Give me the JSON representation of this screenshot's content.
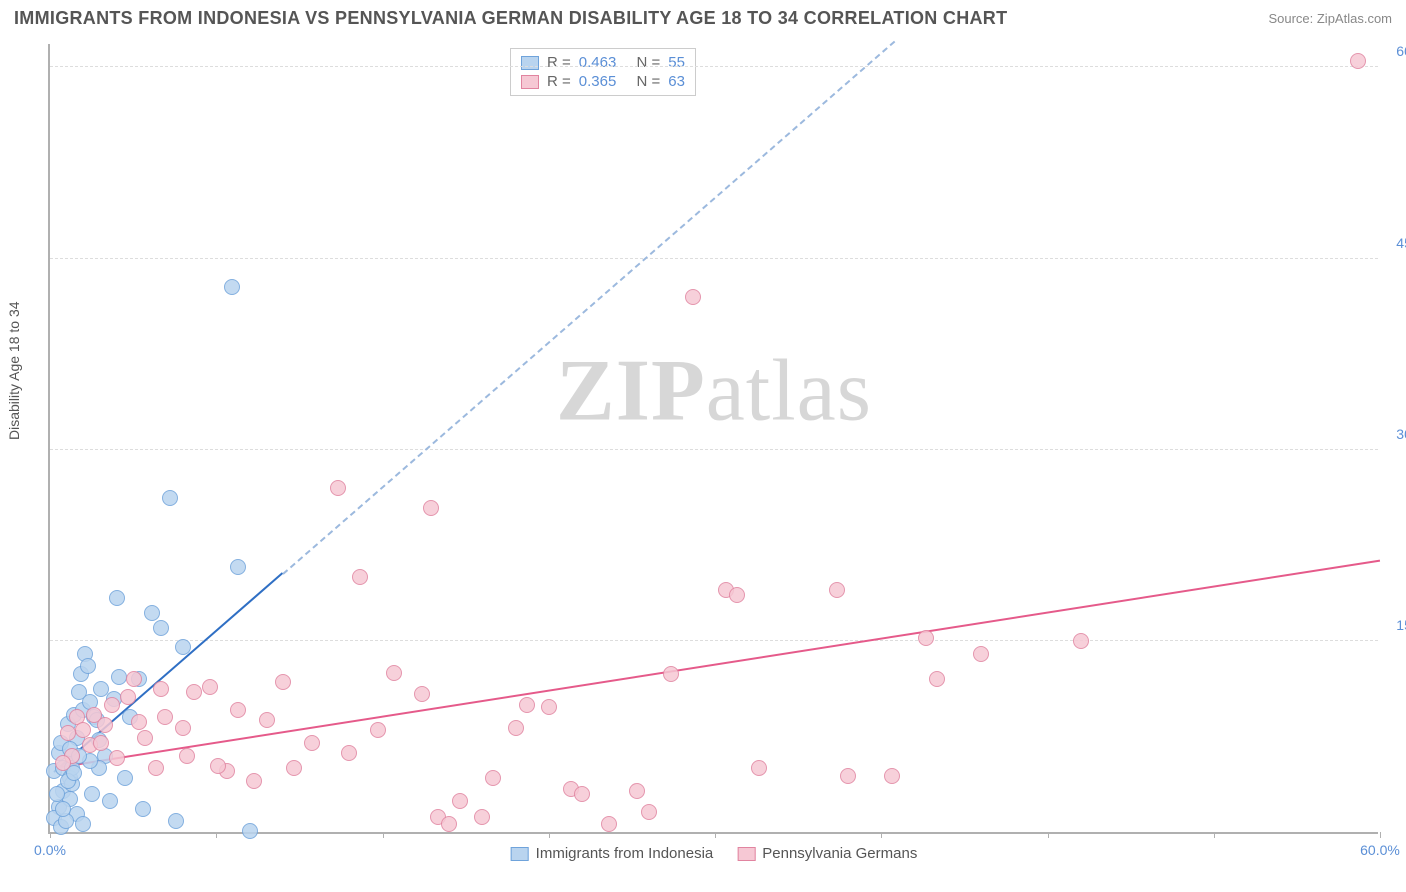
{
  "title": "IMMIGRANTS FROM INDONESIA VS PENNSYLVANIA GERMAN DISABILITY AGE 18 TO 34 CORRELATION CHART",
  "source": "Source: ZipAtlas.com",
  "y_axis_label": "Disability Age 18 to 34",
  "watermark_a": "ZIP",
  "watermark_b": "atlas",
  "chart": {
    "type": "scatter",
    "xlim": [
      0,
      60
    ],
    "ylim": [
      0,
      62
    ],
    "y_ticks": [
      15,
      30,
      45,
      60
    ],
    "y_tick_labels": [
      "15.0%",
      "30.0%",
      "45.0%",
      "60.0%"
    ],
    "x_ticks": [
      0,
      7.5,
      15,
      22.5,
      30,
      37.5,
      45,
      52.5,
      60
    ],
    "x_tick_labels_shown": {
      "0": "0.0%",
      "60": "60.0%"
    },
    "background_color": "#ffffff",
    "grid_color": "#dddddd",
    "axis_color": "#b0b0b0",
    "dot_radius": 8,
    "series": [
      {
        "name": "Immigrants from Indonesia",
        "fill": "#b9d4ef",
        "stroke": "#6fa3db",
        "r_value": "0.463",
        "n_value": "55",
        "trend": {
          "x1": 0.2,
          "y1": 4.6,
          "x2": 10.5,
          "y2": 20.2,
          "color": "#2f6fc4",
          "dash_extend_to_x": 39
        },
        "points": [
          [
            0.2,
            4.8
          ],
          [
            0.4,
            6.2
          ],
          [
            0.6,
            5.0
          ],
          [
            0.5,
            7.0
          ],
          [
            0.8,
            8.5
          ],
          [
            1.0,
            6.0
          ],
          [
            0.9,
            4.2
          ],
          [
            1.1,
            9.2
          ],
          [
            1.3,
            11.0
          ],
          [
            1.5,
            9.6
          ],
          [
            1.2,
            7.4
          ],
          [
            1.4,
            12.4
          ],
          [
            1.6,
            14.0
          ],
          [
            2.0,
            9.0
          ],
          [
            2.2,
            7.2
          ],
          [
            2.1,
            8.8
          ],
          [
            0.6,
            3.2
          ],
          [
            0.4,
            2.0
          ],
          [
            0.9,
            2.6
          ],
          [
            1.2,
            1.4
          ],
          [
            1.5,
            0.6
          ],
          [
            1.0,
            3.8
          ],
          [
            0.3,
            3.0
          ],
          [
            0.2,
            1.1
          ],
          [
            2.5,
            6.0
          ],
          [
            2.9,
            10.4
          ],
          [
            3.1,
            12.2
          ],
          [
            4.6,
            17.2
          ],
          [
            5.0,
            16.0
          ],
          [
            5.4,
            26.2
          ],
          [
            8.2,
            42.8
          ],
          [
            8.5,
            20.8
          ],
          [
            3.4,
            4.2
          ],
          [
            2.7,
            2.4
          ],
          [
            4.2,
            1.8
          ],
          [
            5.7,
            0.9
          ],
          [
            9.0,
            0.1
          ],
          [
            2.2,
            5.0
          ],
          [
            1.8,
            5.6
          ],
          [
            0.5,
            0.4
          ],
          [
            0.7,
            0.9
          ],
          [
            0.6,
            1.8
          ],
          [
            3.0,
            18.4
          ],
          [
            3.6,
            9.0
          ],
          [
            6.0,
            14.5
          ],
          [
            4.0,
            12.0
          ],
          [
            1.0,
            5.0
          ],
          [
            0.9,
            6.5
          ],
          [
            0.8,
            4.0
          ],
          [
            1.1,
            4.6
          ],
          [
            1.8,
            10.2
          ],
          [
            1.3,
            6.0
          ],
          [
            2.3,
            11.2
          ],
          [
            1.9,
            3.0
          ],
          [
            1.7,
            13.0
          ]
        ]
      },
      {
        "name": "Pennsylvania Germans",
        "fill": "#f6c8d4",
        "stroke": "#e184a0",
        "r_value": "0.365",
        "n_value": "63",
        "trend": {
          "x1": 0.5,
          "y1": 5.0,
          "x2": 60,
          "y2": 21.2,
          "color": "#e55a8a"
        },
        "points": [
          [
            0.8,
            7.8
          ],
          [
            1.2,
            9.0
          ],
          [
            1.5,
            8.0
          ],
          [
            1.8,
            6.8
          ],
          [
            2.0,
            9.2
          ],
          [
            2.5,
            8.4
          ],
          [
            2.3,
            7.0
          ],
          [
            2.8,
            10.0
          ],
          [
            3.5,
            10.6
          ],
          [
            3.0,
            5.8
          ],
          [
            4.0,
            8.6
          ],
          [
            4.3,
            7.4
          ],
          [
            5.0,
            11.2
          ],
          [
            5.2,
            9.0
          ],
          [
            6.0,
            8.2
          ],
          [
            6.5,
            11.0
          ],
          [
            7.2,
            11.4
          ],
          [
            8.0,
            4.8
          ],
          [
            8.5,
            9.6
          ],
          [
            9.2,
            4.0
          ],
          [
            10.5,
            11.8
          ],
          [
            11.0,
            5.0
          ],
          [
            13.0,
            27.0
          ],
          [
            14.0,
            20.0
          ],
          [
            15.5,
            12.5
          ],
          [
            16.8,
            10.8
          ],
          [
            17.2,
            25.4
          ],
          [
            17.5,
            1.2
          ],
          [
            18.0,
            0.6
          ],
          [
            18.5,
            2.4
          ],
          [
            19.5,
            1.2
          ],
          [
            20.0,
            4.2
          ],
          [
            21.0,
            8.2
          ],
          [
            21.5,
            10.0
          ],
          [
            22.5,
            9.8
          ],
          [
            23.5,
            3.4
          ],
          [
            24.0,
            3.0
          ],
          [
            25.2,
            0.6
          ],
          [
            26.5,
            3.2
          ],
          [
            27.0,
            1.6
          ],
          [
            28.0,
            12.4
          ],
          [
            29.0,
            42.0
          ],
          [
            30.5,
            19.0
          ],
          [
            31.0,
            18.6
          ],
          [
            32.0,
            5.0
          ],
          [
            35.5,
            19.0
          ],
          [
            36.0,
            4.4
          ],
          [
            38.0,
            4.4
          ],
          [
            39.5,
            15.2
          ],
          [
            40.0,
            12.0
          ],
          [
            42.0,
            14.0
          ],
          [
            46.5,
            15.0
          ],
          [
            59.0,
            60.5
          ],
          [
            6.2,
            6.0
          ],
          [
            7.6,
            5.2
          ],
          [
            9.8,
            8.8
          ],
          [
            11.8,
            7.0
          ],
          [
            13.5,
            6.2
          ],
          [
            14.8,
            8.0
          ],
          [
            4.8,
            5.0
          ],
          [
            3.8,
            12.0
          ],
          [
            1.0,
            6.0
          ],
          [
            0.6,
            5.4
          ]
        ]
      }
    ]
  },
  "legend_rn_title_r": "R =",
  "legend_rn_title_n": "N ="
}
